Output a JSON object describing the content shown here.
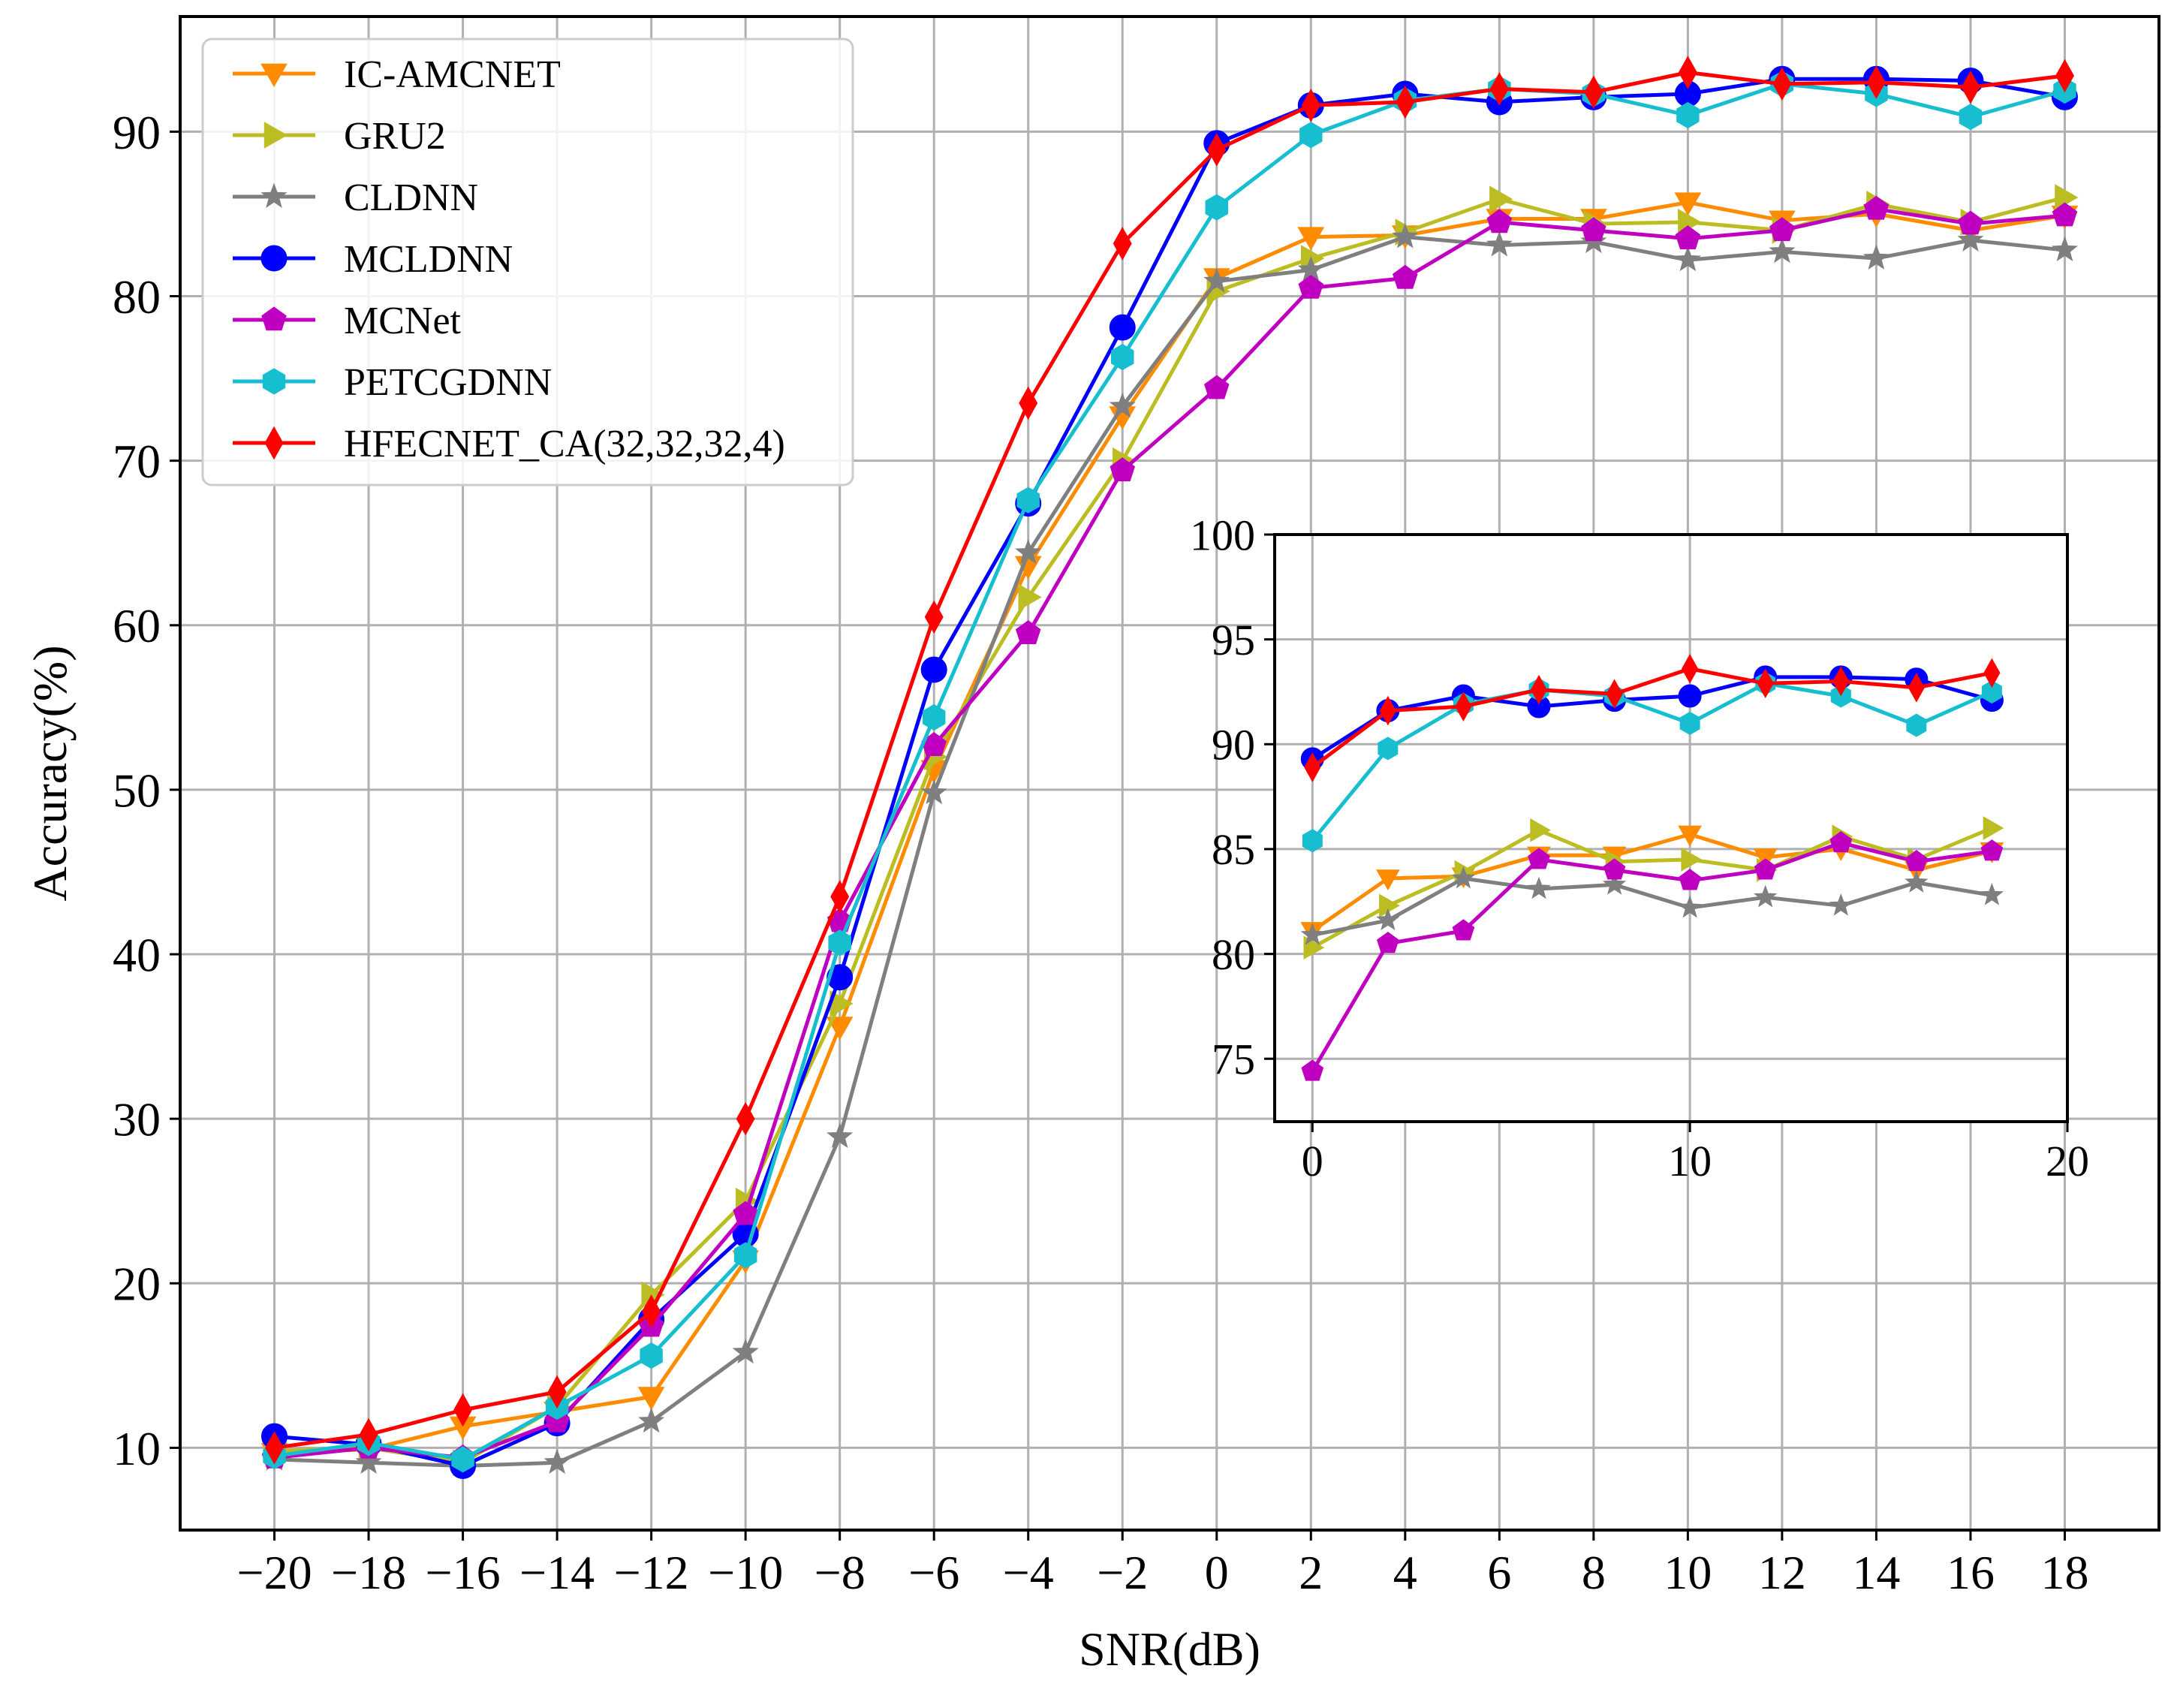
{
  "chart_data": [
    {
      "type": "line",
      "xlabel": "SNR(dB)",
      "ylabel": "Accuracy(%)",
      "xlim": [
        -22,
        20
      ],
      "ylim": [
        5,
        97
      ],
      "grid": true,
      "legend_position": "top-left",
      "x_ticks": [
        -20,
        -18,
        -16,
        -14,
        -12,
        -10,
        -8,
        -6,
        -4,
        -2,
        0,
        2,
        4,
        6,
        8,
        10,
        12,
        14,
        16,
        18
      ],
      "x_tick_labels": [
        "−20",
        "−18",
        "−16",
        "−14",
        "−12",
        "−10",
        "−8",
        "−6",
        "−4",
        "−2",
        "0",
        "2",
        "4",
        "6",
        "8",
        "10",
        "12",
        "14",
        "16",
        "18"
      ],
      "y_ticks": [
        10,
        20,
        30,
        40,
        50,
        60,
        70,
        80,
        90
      ],
      "y_tick_labels": [
        "10",
        "20",
        "30",
        "40",
        "50",
        "60",
        "70",
        "80",
        "90"
      ],
      "x": [
        -20,
        -18,
        -16,
        -14,
        -12,
        -10,
        -8,
        -6,
        -4,
        -2,
        0,
        2,
        4,
        6,
        8,
        10,
        12,
        14,
        16,
        18
      ],
      "series": [
        {
          "name": "IC-AMCNET",
          "color": "#ff8c00",
          "marker": "triangle-down",
          "values": [
            9.7,
            9.9,
            11.3,
            12.2,
            13.1,
            21.4,
            35.6,
            51.2,
            63.6,
            72.7,
            81.1,
            83.6,
            83.7,
            84.7,
            84.7,
            85.7,
            84.6,
            85.0,
            84.0,
            84.9
          ]
        },
        {
          "name": "GRU2",
          "color": "#bcbd22",
          "marker": "triangle-right",
          "values": [
            9.8,
            10.0,
            9.1,
            12.5,
            19.3,
            25.0,
            37.0,
            52.0,
            61.7,
            70.0,
            80.3,
            82.3,
            83.9,
            85.9,
            84.4,
            84.5,
            84.0,
            85.6,
            84.5,
            86.0
          ]
        },
        {
          "name": "CLDNN",
          "color": "#7f7f7f",
          "marker": "star",
          "values": [
            9.3,
            9.1,
            8.9,
            9.1,
            11.6,
            15.8,
            28.9,
            49.8,
            64.4,
            73.3,
            80.9,
            81.6,
            83.6,
            83.1,
            83.3,
            82.2,
            82.7,
            82.3,
            83.4,
            82.8
          ]
        },
        {
          "name": "MCLDNN",
          "color": "#0000ff",
          "marker": "circle",
          "values": [
            10.7,
            10.2,
            8.9,
            11.5,
            17.8,
            23.0,
            38.6,
            57.3,
            67.4,
            78.1,
            89.3,
            91.6,
            92.3,
            91.8,
            92.1,
            92.3,
            93.2,
            93.2,
            93.1,
            92.1
          ]
        },
        {
          "name": "MCNet",
          "color": "#c000c0",
          "marker": "pentagon",
          "values": [
            9.4,
            10.0,
            9.4,
            11.6,
            17.4,
            24.2,
            42.0,
            52.7,
            59.5,
            69.4,
            74.4,
            80.5,
            81.1,
            84.5,
            84.0,
            83.5,
            84.0,
            85.3,
            84.4,
            84.9
          ]
        },
        {
          "name": "PETCGDNN",
          "color": "#17becf",
          "marker": "hexagon",
          "values": [
            9.5,
            10.3,
            9.3,
            12.5,
            15.6,
            21.7,
            40.7,
            54.4,
            67.6,
            76.3,
            85.4,
            89.8,
            91.9,
            92.6,
            92.3,
            91.0,
            92.9,
            92.3,
            90.9,
            92.5
          ]
        },
        {
          "name": "HFECNET_CA(32,32,32,4)",
          "color": "#ff0000",
          "marker": "diamond",
          "values": [
            10.0,
            10.8,
            12.3,
            13.4,
            18.3,
            30.0,
            43.5,
            60.5,
            73.5,
            83.2,
            88.9,
            91.6,
            91.8,
            92.6,
            92.4,
            93.6,
            92.9,
            93.0,
            92.7,
            93.4
          ]
        }
      ]
    },
    {
      "type": "line",
      "role": "inset",
      "xlim": [
        -1,
        20
      ],
      "ylim": [
        72,
        100
      ],
      "grid": true,
      "x_ticks": [
        0,
        10,
        20
      ],
      "x_tick_labels": [
        "0",
        "10",
        "20"
      ],
      "y_ticks": [
        75,
        80,
        85,
        90,
        95,
        100
      ],
      "y_tick_labels": [
        "75",
        "80",
        "85",
        "90",
        "95",
        "100"
      ],
      "x": [
        0,
        2,
        4,
        6,
        8,
        10,
        12,
        14,
        16,
        18
      ],
      "series": [
        {
          "name": "IC-AMCNET",
          "color": "#ff8c00",
          "marker": "triangle-down",
          "values": [
            81.1,
            83.6,
            83.7,
            84.7,
            84.7,
            85.7,
            84.6,
            85.0,
            84.0,
            84.9
          ]
        },
        {
          "name": "GRU2",
          "color": "#bcbd22",
          "marker": "triangle-right",
          "values": [
            80.3,
            82.3,
            83.9,
            85.9,
            84.4,
            84.5,
            84.0,
            85.6,
            84.5,
            86.0
          ]
        },
        {
          "name": "CLDNN",
          "color": "#7f7f7f",
          "marker": "star",
          "values": [
            80.9,
            81.6,
            83.6,
            83.1,
            83.3,
            82.2,
            82.7,
            82.3,
            83.4,
            82.8
          ]
        },
        {
          "name": "MCLDNN",
          "color": "#0000ff",
          "marker": "circle",
          "values": [
            89.3,
            91.6,
            92.3,
            91.8,
            92.1,
            92.3,
            93.2,
            93.2,
            93.1,
            92.1
          ]
        },
        {
          "name": "MCNet",
          "color": "#c000c0",
          "marker": "pentagon",
          "values": [
            74.4,
            80.5,
            81.1,
            84.5,
            84.0,
            83.5,
            84.0,
            85.3,
            84.4,
            84.9
          ]
        },
        {
          "name": "PETCGDNN",
          "color": "#17becf",
          "marker": "hexagon",
          "values": [
            85.4,
            89.8,
            91.9,
            92.6,
            92.3,
            91.0,
            92.9,
            92.3,
            90.9,
            92.5
          ]
        },
        {
          "name": "HFECNET_CA(32,32,32,4)",
          "color": "#ff0000",
          "marker": "diamond",
          "values": [
            88.9,
            91.6,
            91.8,
            92.6,
            92.4,
            93.6,
            92.9,
            93.0,
            92.7,
            93.4
          ]
        }
      ]
    }
  ]
}
